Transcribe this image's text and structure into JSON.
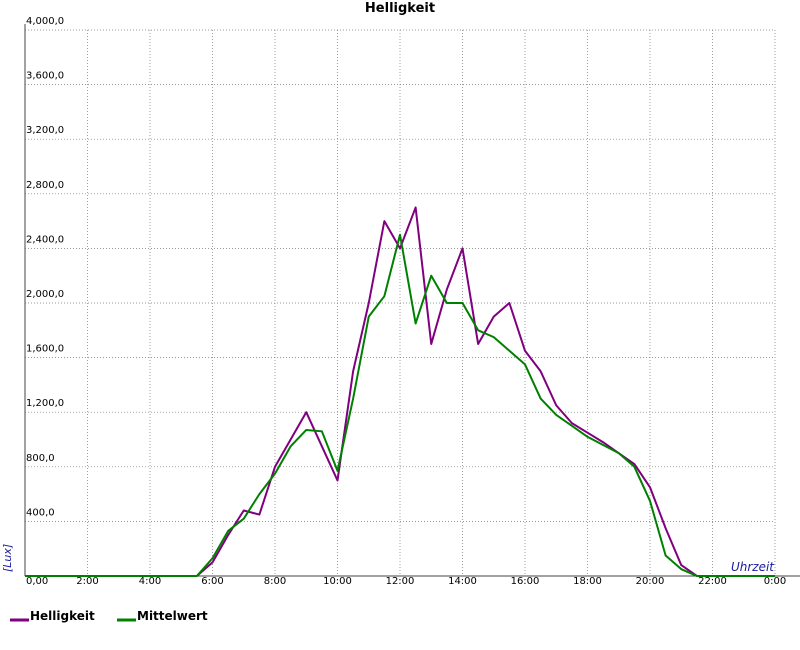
{
  "chart_data": {
    "type": "line",
    "title": "Helligkeit",
    "ylabel": "[Lux]",
    "xlabel": "Uhrzeit",
    "x": [
      0,
      0.5,
      1,
      1.5,
      2,
      2.5,
      3,
      3.5,
      4,
      4.5,
      5,
      5.5,
      6,
      6.5,
      7,
      7.5,
      8,
      8.5,
      9,
      9.5,
      10,
      10.5,
      11,
      11.5,
      12,
      12.5,
      13,
      13.5,
      14,
      14.5,
      15,
      15.5,
      16,
      16.5,
      17,
      17.5,
      18,
      18.5,
      19,
      19.5,
      20,
      20.5,
      21,
      21.5,
      22,
      22.5,
      23,
      23.5,
      24
    ],
    "series": [
      {
        "name": "Helligkeit",
        "color": "#800080",
        "values": [
          0,
          0,
          0,
          0,
          0,
          0,
          0,
          0,
          0,
          0,
          0,
          0,
          100,
          300,
          480,
          450,
          800,
          1000,
          1200,
          950,
          700,
          1500,
          2000,
          2600,
          2400,
          2700,
          1700,
          2100,
          2400,
          1700,
          1900,
          2000,
          1650,
          1500,
          1250,
          1120,
          1050,
          980,
          900,
          820,
          650,
          350,
          80,
          0,
          0,
          0,
          0,
          0,
          0
        ]
      },
      {
        "name": "Mittelwert",
        "color": "#008000",
        "values": [
          0,
          0,
          0,
          0,
          0,
          0,
          0,
          0,
          0,
          0,
          0,
          0,
          130,
          330,
          420,
          600,
          750,
          950,
          1070,
          1060,
          770,
          1300,
          1900,
          2050,
          2500,
          1850,
          2200,
          2000,
          2000,
          1800,
          1750,
          1650,
          1550,
          1300,
          1180,
          1100,
          1020,
          960,
          900,
          800,
          550,
          150,
          50,
          0,
          0,
          0,
          0,
          0,
          0
        ]
      }
    ],
    "xlim": [
      0,
      24
    ],
    "xticks": [
      {
        "value": 0,
        "label": "0,00"
      },
      {
        "value": 2,
        "label": "2:00"
      },
      {
        "value": 4,
        "label": "4:00"
      },
      {
        "value": 6,
        "label": "6:00"
      },
      {
        "value": 8,
        "label": "8:00"
      },
      {
        "value": 10,
        "label": "10:00"
      },
      {
        "value": 12,
        "label": "12:00"
      },
      {
        "value": 14,
        "label": "14:00"
      },
      {
        "value": 16,
        "label": "16:00"
      },
      {
        "value": 18,
        "label": "18:00"
      },
      {
        "value": 20,
        "label": "20:00"
      },
      {
        "value": 22,
        "label": "22:00"
      },
      {
        "value": 24,
        "label": "0:00"
      }
    ],
    "ylim": [
      0,
      4000
    ],
    "yticks": [
      {
        "value": 400,
        "label": "400,0"
      },
      {
        "value": 800,
        "label": "800,0"
      },
      {
        "value": 1200,
        "label": "1,200,0"
      },
      {
        "value": 1600,
        "label": "1,600,0"
      },
      {
        "value": 2000,
        "label": "2,000,0"
      },
      {
        "value": 2400,
        "label": "2,400,0"
      },
      {
        "value": 2800,
        "label": "2,800,0"
      },
      {
        "value": 3200,
        "label": "3,200,0"
      },
      {
        "value": 3600,
        "label": "3,600,0"
      },
      {
        "value": 4000,
        "label": "4,000,0"
      }
    ],
    "grid": true
  }
}
